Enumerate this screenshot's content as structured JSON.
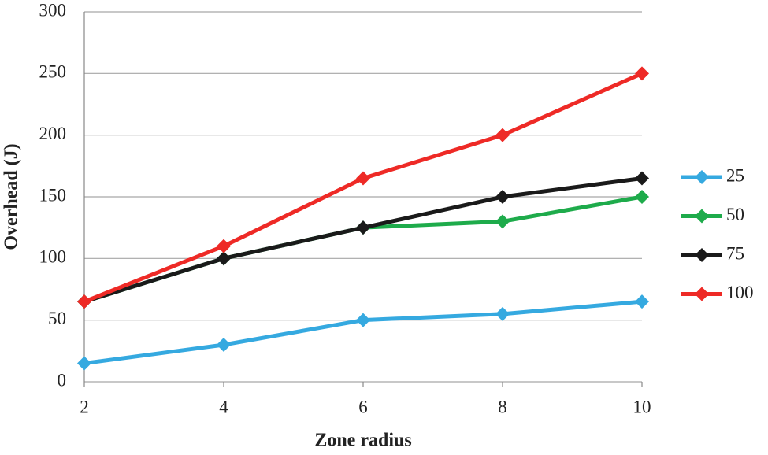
{
  "chart_data": {
    "type": "line",
    "x_label": "Zone radius",
    "y_label": "Overhead (J)",
    "x": [
      2,
      4,
      6,
      8,
      10
    ],
    "series": [
      {
        "name": "25",
        "color": "#35a9e0",
        "values": [
          15,
          30,
          50,
          55,
          65
        ]
      },
      {
        "name": "50",
        "color": "#1eab4b",
        "values": [
          65,
          100,
          125,
          130,
          150
        ]
      },
      {
        "name": "75",
        "color": "#1a1a1a",
        "values": [
          65,
          100,
          125,
          150,
          165
        ]
      },
      {
        "name": "100",
        "color": "#ee2a26",
        "values": [
          65,
          110,
          165,
          200,
          250
        ]
      }
    ],
    "xlim": [
      2,
      10
    ],
    "xticks": [
      2,
      4,
      6,
      8,
      10
    ],
    "ylim": [
      0,
      300
    ],
    "yticks": [
      0,
      50,
      100,
      150,
      200,
      250,
      300
    ],
    "grid": true,
    "legend": "right"
  }
}
